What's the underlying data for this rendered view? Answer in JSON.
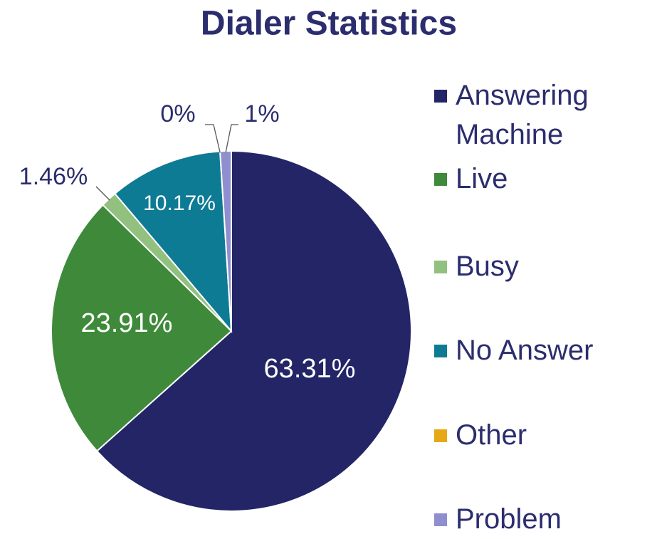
{
  "chart_data": {
    "type": "pie",
    "title": "Dialer Statistics",
    "categories": [
      "Answering Machine",
      "Live",
      "Busy",
      "No Answer",
      "Other",
      "Problem"
    ],
    "values": [
      63.31,
      23.91,
      1.46,
      10.17,
      0,
      1
    ],
    "value_labels": [
      "63.31%",
      "23.91%",
      "1.46%",
      "10.17%",
      "0%",
      "1%"
    ],
    "colors": [
      "#232567",
      "#3f8a3a",
      "#92c07e",
      "#0e7b94",
      "#e6a817",
      "#8f8fd0"
    ],
    "legend": "right"
  }
}
